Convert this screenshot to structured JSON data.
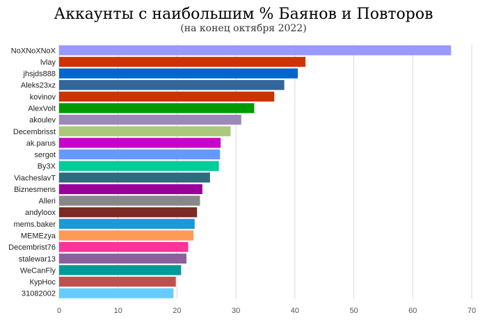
{
  "chart_data": {
    "type": "bar",
    "orientation": "horizontal",
    "title": "Аккаунты с наибольшим % Баянов и Повторов",
    "subtitle": "(на конец октября 2022)",
    "xlabel": "",
    "ylabel": "",
    "xlim": [
      0,
      70
    ],
    "xticks": [
      0,
      10,
      20,
      30,
      40,
      50,
      60,
      70
    ],
    "grid": true,
    "legend": "none",
    "categories": [
      "NoXNoXNoX",
      "lvlay",
      "jhsjds888",
      "Aleks23xz",
      "kovinov",
      "AlexVolt",
      "akoulev",
      "Decembrisst",
      "ak.parus",
      "sergot",
      "By3X",
      "ViacheslavT",
      "Biznesmens",
      "Alleri",
      "andyloox",
      "mems.baker",
      "MEMEzya",
      "Decembrist76",
      "stalewar13",
      "WeCanFly",
      "КурНос",
      "31082002"
    ],
    "values": [
      66.5,
      41.8,
      40.5,
      38.2,
      36.5,
      33.1,
      30.9,
      29.1,
      27.4,
      27.3,
      27.1,
      25.6,
      24.3,
      23.9,
      23.4,
      23.0,
      22.8,
      21.9,
      21.6,
      20.7,
      19.8,
      19.4
    ],
    "colors": [
      "#9999ff",
      "#cc3300",
      "#0066cc",
      "#336699",
      "#cc3300",
      "#009900",
      "#9c88b9",
      "#aac97c",
      "#cc00cc",
      "#6699ff",
      "#00cc99",
      "#2e6b7d",
      "#990099",
      "#888888",
      "#7b2a24",
      "#1a9ad6",
      "#ff9955",
      "#ff3399",
      "#8c5f9c",
      "#009999",
      "#c0504d",
      "#66ccff"
    ]
  }
}
